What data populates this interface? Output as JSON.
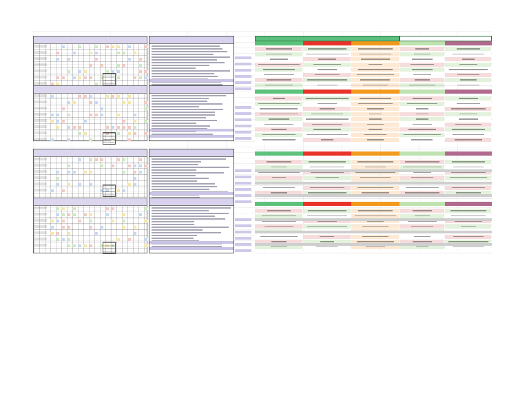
{
  "sheet": {
    "blocks": [
      {
        "schedule_title": "",
        "notes_title": "",
        "side_label": "",
        "compare_headers": [
          "",
          "",
          "",
          "",
          ""
        ],
        "top_headers": [
          "",
          ""
        ]
      },
      {
        "schedule_title": "",
        "notes_title": "",
        "side_label": "",
        "compare_headers": [
          "",
          "",
          "",
          "",
          ""
        ],
        "top_headers": [
          "",
          ""
        ]
      },
      {
        "schedule_title": "",
        "notes_title": "",
        "side_label": "",
        "compare_headers": [
          "",
          "",
          "",
          "",
          ""
        ],
        "top_headers": [
          "",
          ""
        ]
      },
      {
        "schedule_title": "",
        "notes_title": "",
        "side_label": "",
        "compare_headers": [
          "",
          "",
          "",
          "",
          ""
        ],
        "top_headers": [
          "",
          ""
        ]
      }
    ]
  },
  "colors": {
    "header_green": "#5cc27b",
    "header_red": "#e8332a",
    "header_orange": "#f29a1e",
    "header_light_green": "#bfe3b0",
    "header_purple": "#b06a8e",
    "row_pink": "#f6dcdc",
    "row_green": "#e3f2dc",
    "notes_lavender": "#d9d2ee"
  }
}
